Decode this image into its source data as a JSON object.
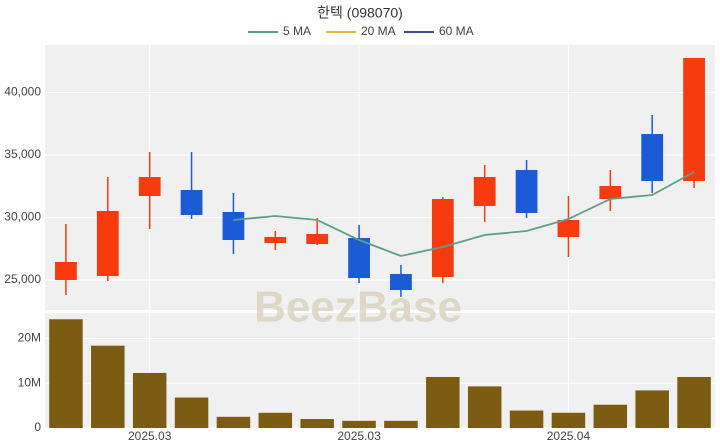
{
  "chart_data": [
    {
      "type": "candlestick",
      "title": "한텍 (098070)",
      "watermark": "BeezBase",
      "categories": [
        null,
        null,
        "2025.03",
        null,
        null,
        null,
        null,
        "2025.03",
        null,
        null,
        null,
        null,
        "2025.04",
        null,
        null,
        null
      ],
      "open": [
        25000,
        25320,
        31720,
        32200,
        30440,
        27960,
        27880,
        28360,
        25480,
        25240,
        30920,
        33800,
        28440,
        31480,
        36680,
        32920
      ],
      "high": [
        29480,
        33240,
        35240,
        35240,
        31960,
        28920,
        29960,
        29400,
        26200,
        31640,
        34200,
        34600,
        31720,
        33800,
        38200,
        42760
      ],
      "low": [
        23800,
        24920,
        29080,
        29880,
        27080,
        27400,
        27800,
        24760,
        23640,
        24760,
        29640,
        29960,
        26840,
        30520,
        31960,
        32360
      ],
      "close": [
        26440,
        30520,
        33240,
        30200,
        28200,
        28440,
        28680,
        25160,
        24200,
        31480,
        33240,
        30360,
        29800,
        32520,
        32920,
        42760
      ],
      "up_color": "#f73b0f",
      "down_color": "#1b5bd6",
      "series": [
        {
          "name": "5 MA",
          "color": "#5f9e88",
          "values": [
            null,
            null,
            null,
            null,
            29800,
            30120,
            29800,
            28200,
            26920,
            27640,
            28600,
            28920,
            29880,
            31480,
            31800,
            33640
          ]
        },
        {
          "name": "20 MA",
          "color": "#e5b53c",
          "values": [
            null,
            null,
            null,
            null,
            null,
            null,
            null,
            null,
            null,
            null,
            null,
            null,
            null,
            null,
            null,
            null
          ]
        },
        {
          "name": "60 MA",
          "color": "#3b4f8e",
          "values": [
            null,
            null,
            null,
            null,
            null,
            null,
            null,
            null,
            null,
            null,
            null,
            null,
            null,
            null,
            null,
            null
          ]
        }
      ],
      "ylim": [
        22600,
        43800
      ],
      "yticks": [
        {
          "value": 25000,
          "label": "25,000"
        },
        {
          "value": 30000,
          "label": "30,000"
        },
        {
          "value": 35000,
          "label": "35,000"
        },
        {
          "value": 40000,
          "label": "40,000"
        }
      ],
      "grid": true
    },
    {
      "type": "bar",
      "color": "#7b5c12",
      "values": [
        24300000,
        18400000,
        12300000,
        6800000,
        2500000,
        3400000,
        2000000,
        1600000,
        1600000,
        11400000,
        9300000,
        3900000,
        3400000,
        5200000,
        8400000,
        11400000
      ],
      "ylim": [
        0,
        25700000
      ],
      "yticks": [
        0,
        {
          "value": 10000000,
          "label": "10M"
        },
        {
          "value": 20000000,
          "label": "20M"
        }
      ],
      "grid": true
    }
  ]
}
